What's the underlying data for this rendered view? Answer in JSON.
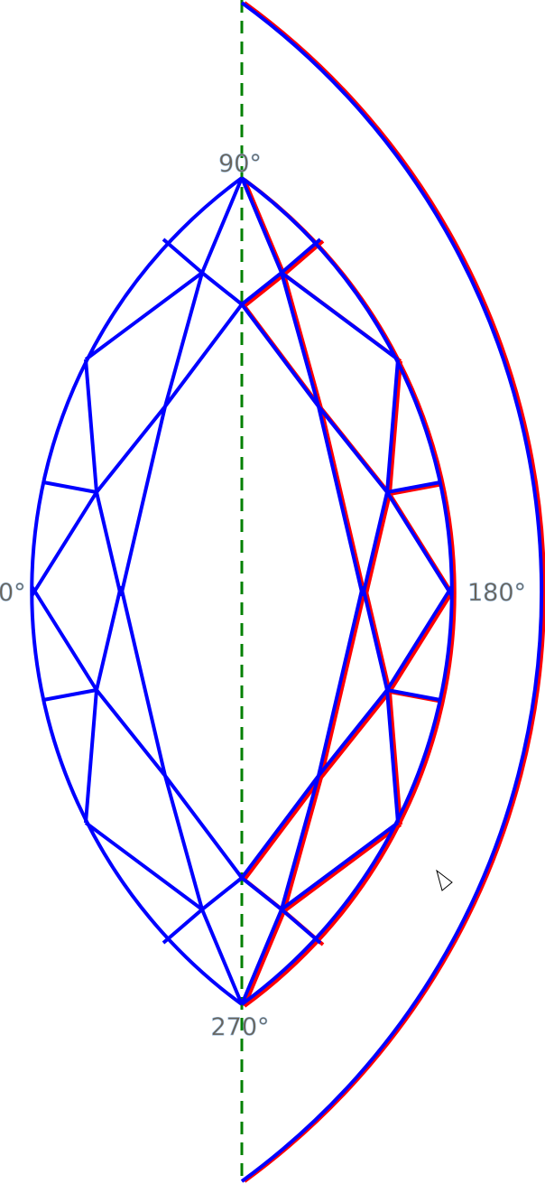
{
  "angle_labels": {
    "top": "90°",
    "right": "180°",
    "bottom": "270°",
    "left": "0°"
  },
  "colors": {
    "primary_outline": "#0000ff",
    "secondary_outline": "#ff0000",
    "axis": "#008000",
    "label": "#6b6256"
  },
  "axis_style": "dashed",
  "cursor_icon": "pointer-arrow-icon"
}
